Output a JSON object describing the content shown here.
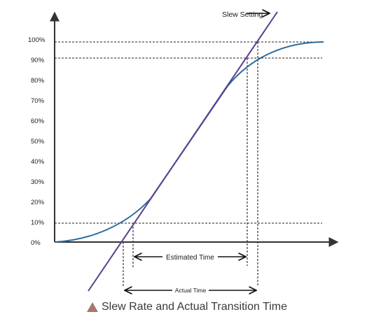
{
  "y_axis": {
    "ticks": [
      "0%",
      "10%",
      "20%",
      "30%",
      "40%",
      "50%",
      "60%",
      "70%",
      "80%",
      "90%",
      "100%"
    ]
  },
  "annotations": {
    "slew_setting": "Slew Setting",
    "estimated_time": "Estimated Time",
    "actual_time": "Actual Time"
  },
  "caption": {
    "text": "Slew Rate and Actual Transition Time",
    "icon": "triangle-icon",
    "icon_color": "#a7776a"
  },
  "colors": {
    "curve": "#2e6b9e",
    "slew_line": "#5b3f8f",
    "axes": "#333333",
    "guides": "#222222"
  }
}
